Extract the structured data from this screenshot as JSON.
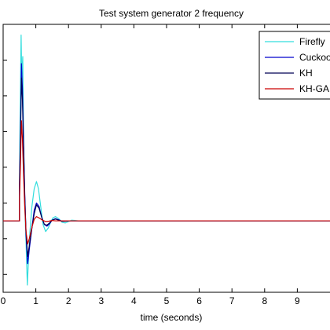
{
  "chart_data": {
    "type": "line",
    "title": "Test system generator 2 frequency",
    "xlabel": "time (seconds)",
    "ylabel": "",
    "xlim": [
      0,
      10
    ],
    "ylim": [
      -0.02,
      0.055
    ],
    "xticks": [
      "0",
      "1",
      "2",
      "3",
      "4",
      "5",
      "6",
      "7",
      "8",
      "9"
    ],
    "grid": false,
    "legend_position": "top-right",
    "series": [
      {
        "name": "Firefly",
        "color": "#33dddd",
        "x": [
          0,
          0.5,
          0.5,
          0.52,
          0.55,
          0.57,
          0.6,
          0.63,
          0.66,
          0.7,
          0.74,
          0.78,
          0.82,
          0.88,
          0.95,
          1.02,
          1.08,
          1.15,
          1.22,
          1.3,
          1.38,
          1.45,
          1.52,
          1.6,
          1.7,
          1.8,
          1.9,
          2.0,
          2.1,
          2.2,
          2.3,
          10
        ],
        "y": [
          0,
          0,
          0.012,
          0.03,
          0.052,
          0.04,
          0.046,
          0.02,
          0.005,
          -0.006,
          -0.018,
          -0.01,
          -0.003,
          0.004,
          0.009,
          0.011,
          0.009,
          0.004,
          -0.001,
          -0.003,
          -0.002,
          -0.0005,
          0.0008,
          0.0012,
          0.0006,
          -0.0004,
          -0.0006,
          -0.0002,
          0.0002,
          0.0001,
          0,
          0
        ]
      },
      {
        "name": "Cuckoo",
        "color": "#0000cc",
        "x": [
          0,
          0.5,
          0.5,
          0.53,
          0.56,
          0.59,
          0.62,
          0.66,
          0.7,
          0.75,
          0.8,
          0.88,
          0.95,
          1.02,
          1.1,
          1.18,
          1.26,
          1.34,
          1.42,
          1.5,
          1.6,
          1.7,
          1.8,
          1.9,
          2.0,
          10
        ],
        "y": [
          0,
          0,
          0.01,
          0.025,
          0.044,
          0.037,
          0.024,
          0.008,
          -0.004,
          -0.012,
          -0.008,
          -0.002,
          0.003,
          0.005,
          0.004,
          0.001,
          -0.001,
          -0.0015,
          -0.0008,
          0.0002,
          0.0006,
          0.0003,
          -0.0001,
          -0.0001,
          0,
          0
        ]
      },
      {
        "name": "KH",
        "color": "#000055",
        "x": [
          0,
          0.5,
          0.5,
          0.53,
          0.56,
          0.59,
          0.62,
          0.66,
          0.7,
          0.75,
          0.8,
          0.88,
          0.95,
          1.02,
          1.1,
          1.18,
          1.26,
          1.34,
          1.42,
          1.5,
          1.6,
          1.7,
          1.8,
          1.9,
          2.0,
          10
        ],
        "y": [
          0,
          0,
          0.009,
          0.022,
          0.04,
          0.034,
          0.022,
          0.007,
          -0.003,
          -0.01,
          -0.007,
          -0.002,
          0.002,
          0.0045,
          0.0035,
          0.001,
          -0.001,
          -0.0012,
          -0.0006,
          0.0002,
          0.0005,
          0.0002,
          -0.0001,
          -0.0001,
          0,
          0
        ]
      },
      {
        "name": "KH-GA",
        "color": "#cc0000",
        "x": [
          0,
          0.5,
          0.5,
          0.53,
          0.56,
          0.59,
          0.62,
          0.66,
          0.7,
          0.75,
          0.8,
          0.88,
          0.95,
          1.02,
          1.1,
          1.2,
          1.3,
          1.4,
          1.5,
          1.6,
          10
        ],
        "y": [
          0,
          0,
          0.006,
          0.016,
          0.028,
          0.023,
          0.014,
          0.004,
          -0.003,
          -0.0065,
          -0.005,
          -0.0018,
          0.0004,
          0.0012,
          0.0008,
          0.0002,
          -0.0002,
          -0.0001,
          0.0001,
          0,
          0
        ]
      }
    ]
  }
}
